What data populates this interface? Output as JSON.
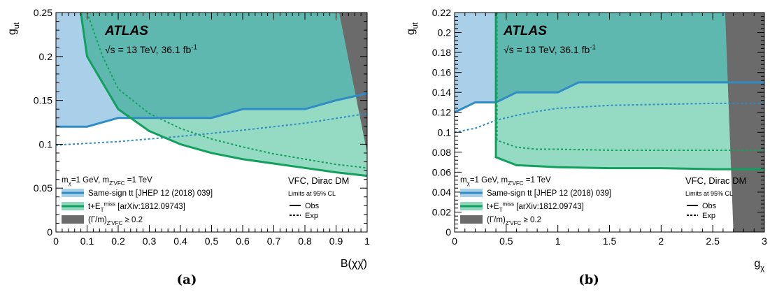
{
  "figure": {
    "captions": [
      "(a)",
      "(b)"
    ]
  },
  "chart_data": [
    {
      "type": "area",
      "panel": "a",
      "xlabel": "B(χχ̄)",
      "ylabel": "g_ut",
      "xlim": [
        0,
        1
      ],
      "ylim": [
        0,
        0.25
      ],
      "xticks": [
        0,
        0.1,
        0.2,
        0.3,
        0.4,
        0.5,
        0.6,
        0.7,
        0.8,
        0.9,
        1
      ],
      "xtick_labels": [
        "0",
        "0.1",
        "0.2",
        "0.3",
        "0.4",
        "0.5",
        "0.6",
        "0.7",
        "0.8",
        "0.9",
        "1"
      ],
      "yticks": [
        0,
        0.05,
        0.1,
        0.15,
        0.2,
        0.25
      ],
      "ytick_labels": [
        "0",
        "0.05",
        "0.1",
        "0.15",
        "0.2",
        "0.25"
      ],
      "experiment": "ATLAS",
      "energy_label": "√s = 13 TeV, 36.1 fb⁻¹",
      "model": "VFC, Dirac DM",
      "cl": "Limits at 95% CL",
      "mass_label": "m_χ=1 GeV, m_Z'VFC =1 TeV",
      "legend": {
        "placement": "bottom-left",
        "entries": [
          {
            "label": "Same-sign tt [JHEP 12 (2018) 039]",
            "color": "#3b8fc8"
          },
          {
            "label": "t+E_T^miss [arXiv:1812.09743]",
            "color": "#11a060"
          },
          {
            "label": "(Γ/m)_Z'VFC ≥ 0.2",
            "color": "#6e6e6e"
          }
        ],
        "styles": [
          {
            "label": "Obs",
            "dash": false
          },
          {
            "label": "Exp",
            "dash": true
          }
        ]
      },
      "series": [
        {
          "name": "Same-sign tt",
          "kind": "obs",
          "x": [
            0,
            0.1,
            0.2,
            0.5,
            0.6,
            0.8,
            0.9,
            1.0
          ],
          "y": [
            0.12,
            0.12,
            0.13,
            0.13,
            0.14,
            0.14,
            0.15,
            0.158
          ]
        },
        {
          "name": "Same-sign tt",
          "kind": "exp",
          "x": [
            0,
            0.2,
            0.4,
            0.6,
            0.8,
            1.0
          ],
          "y": [
            0.099,
            0.103,
            0.109,
            0.116,
            0.124,
            0.135
          ]
        },
        {
          "name": "t+E_T^miss",
          "kind": "obs",
          "x": [
            0.08,
            0.1,
            0.2,
            0.3,
            0.4,
            0.5,
            0.6,
            0.7,
            0.8,
            0.9,
            1.0
          ],
          "y": [
            0.25,
            0.2,
            0.14,
            0.115,
            0.1,
            0.09,
            0.083,
            0.078,
            0.073,
            0.068,
            0.064
          ]
        },
        {
          "name": "t+E_T^miss",
          "kind": "exp",
          "x": [
            0.1,
            0.15,
            0.2,
            0.3,
            0.4,
            0.5,
            0.6,
            0.7,
            0.8,
            0.9,
            1.0
          ],
          "y": [
            0.25,
            0.2,
            0.163,
            0.135,
            0.118,
            0.106,
            0.097,
            0.089,
            0.083,
            0.077,
            0.073
          ]
        },
        {
          "name": "(Γ/m)_Z'VFC ≥ 0.2",
          "kind": "region",
          "x": [
            0.91,
            1.0,
            1.0
          ],
          "y": [
            0.25,
            0.25,
            0.09
          ]
        }
      ]
    },
    {
      "type": "area",
      "panel": "b",
      "xlabel": "g_χ",
      "ylabel": "g_ut",
      "xlim": [
        0,
        3
      ],
      "ylim": [
        0,
        0.22
      ],
      "xticks": [
        0,
        0.5,
        1,
        1.5,
        2,
        2.5,
        3
      ],
      "xtick_labels": [
        "0",
        "0.5",
        "1",
        "1.5",
        "2",
        "2.5",
        "3"
      ],
      "yticks": [
        0,
        0.02,
        0.04,
        0.06,
        0.08,
        0.1,
        0.12,
        0.14,
        0.16,
        0.18,
        0.2,
        0.22
      ],
      "ytick_labels": [
        "0",
        "0.02",
        "0.04",
        "0.06",
        "0.08",
        "0.1",
        "0.12",
        "0.14",
        "0.16",
        "0.18",
        "0.2",
        "0.22"
      ],
      "experiment": "ATLAS",
      "energy_label": "√s = 13 TeV, 36.1 fb⁻¹",
      "model": "VFC, Dirac DM",
      "cl": "Limits at 95% CL",
      "mass_label": "m_χ=1 GeV, m_Z'VFC =1 TeV",
      "legend": {
        "placement": "bottom-left",
        "entries": [
          {
            "label": "Same-sign tt [JHEP 12 (2018) 039]",
            "color": "#3b8fc8"
          },
          {
            "label": "t+E_T^miss [arXiv:1812.09743]",
            "color": "#11a060"
          },
          {
            "label": "(Γ/m)_Z'VFC ≥ 0.2",
            "color": "#6e6e6e"
          }
        ],
        "styles": [
          {
            "label": "Obs",
            "dash": false
          },
          {
            "label": "Exp",
            "dash": true
          }
        ]
      },
      "series": [
        {
          "name": "Same-sign tt",
          "kind": "obs",
          "x": [
            0,
            0.2,
            0.4,
            0.6,
            1.0,
            1.2,
            3.0
          ],
          "y": [
            0.12,
            0.13,
            0.13,
            0.14,
            0.14,
            0.15,
            0.15
          ]
        },
        {
          "name": "Same-sign tt",
          "kind": "exp",
          "x": [
            0,
            0.2,
            0.4,
            0.6,
            0.8,
            1.0,
            1.5,
            2.0,
            2.5,
            3.0
          ],
          "y": [
            0.1,
            0.104,
            0.112,
            0.117,
            0.121,
            0.124,
            0.127,
            0.128,
            0.129,
            0.129
          ]
        },
        {
          "name": "t+E_T^miss",
          "kind": "obs",
          "x": [
            0.4,
            0.4,
            0.6,
            0.8,
            1.0,
            1.5,
            2.0,
            2.5,
            3.0
          ],
          "y": [
            0.22,
            0.075,
            0.067,
            0.066,
            0.065,
            0.064,
            0.064,
            0.063,
            0.063
          ]
        },
        {
          "name": "t+E_T^miss",
          "kind": "exp",
          "x": [
            0.41,
            0.41,
            0.6,
            0.8,
            1.0,
            1.5,
            2.0,
            2.5,
            3.0
          ],
          "y": [
            0.22,
            0.092,
            0.085,
            0.083,
            0.083,
            0.082,
            0.082,
            0.082,
            0.082
          ]
        },
        {
          "name": "(Γ/m)_Z'VFC ≥ 0.2",
          "kind": "region",
          "x": [
            2.62,
            3.0,
            3.0,
            2.7
          ],
          "y": [
            0.22,
            0.22,
            0.0,
            0.0
          ]
        }
      ]
    }
  ]
}
